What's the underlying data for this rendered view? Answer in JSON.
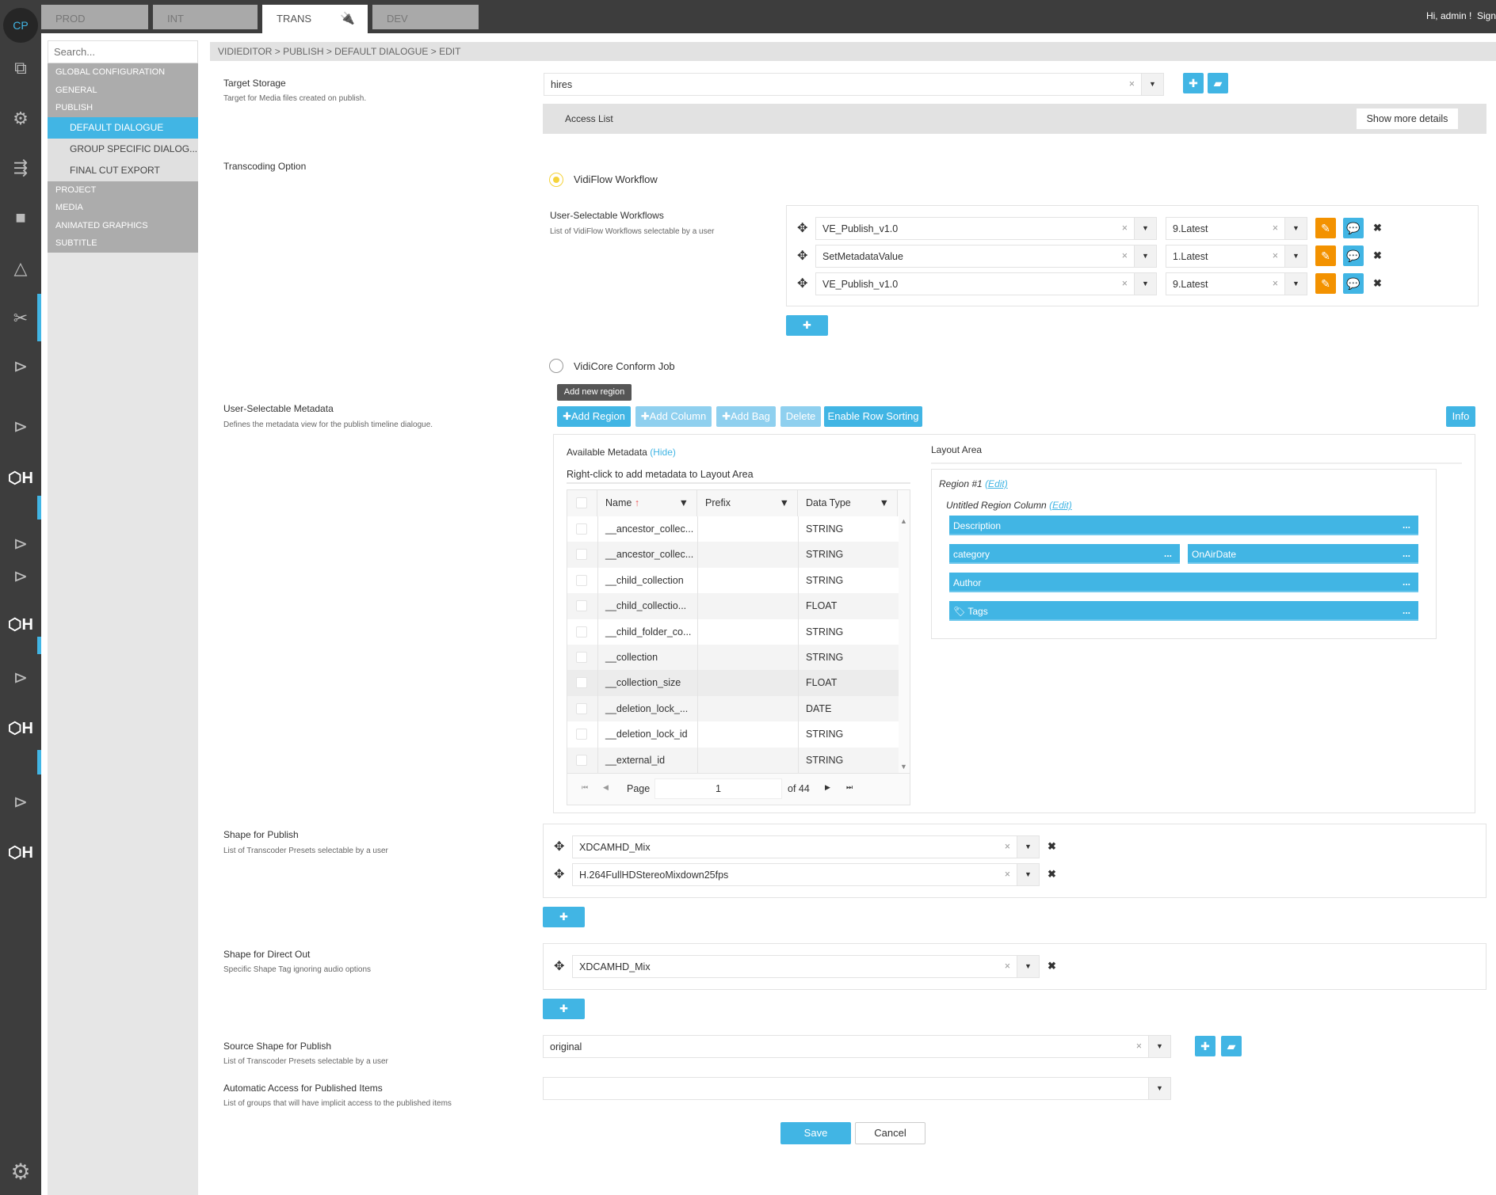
{
  "topbar": {
    "tabs": [
      {
        "label": "PROD"
      },
      {
        "label": "INT"
      },
      {
        "label": "TRANS",
        "icon": "plug-icon"
      },
      {
        "label": "DEV"
      }
    ],
    "greeting": "Hi, admin !",
    "signout": "Sign"
  },
  "rail": {
    "logo": "CP"
  },
  "nav": {
    "search_placeholder": "Search...",
    "items": [
      {
        "label": "GLOBAL CONFIGURATION"
      },
      {
        "label": "GENERAL"
      },
      {
        "label": "PUBLISH"
      },
      {
        "label": "DEFAULT DIALOGUE",
        "active": true
      },
      {
        "label": "GROUP SPECIFIC DIALOG..."
      },
      {
        "label": "FINAL CUT EXPORT"
      },
      {
        "label": "PROJECT"
      },
      {
        "label": "MEDIA"
      },
      {
        "label": "ANIMATED GRAPHICS"
      },
      {
        "label": "SUBTITLE"
      }
    ]
  },
  "breadcrumb": "VIDIEDITOR > PUBLISH > DEFAULT DIALOGUE > EDIT",
  "target_storage": {
    "label": "Target Storage",
    "desc": "Target for Media files created on publish.",
    "value": "hires",
    "access_list": "Access List",
    "show_more": "Show more details"
  },
  "transcoding": {
    "label": "Transcoding Option",
    "option1": "VidiFlow Workflow",
    "option2": "VidiCore Conform Job",
    "selected": "VidiFlow Workflow"
  },
  "workflows": {
    "label": "User-Selectable Workflows",
    "desc": "List of VidiFlow Workflows selectable by a user",
    "rows": [
      {
        "name": "VE_Publish_v1.0",
        "version": "9.Latest"
      },
      {
        "name": "SetMetadataValue",
        "version": "1.Latest"
      },
      {
        "name": "VE_Publish_v1.0",
        "version": "9.Latest"
      }
    ]
  },
  "metadata": {
    "label": "User-Selectable Metadata",
    "desc": "Defines the metadata view for the publish timeline dialogue.",
    "tooltip": "Add new region",
    "buttons": {
      "add_region": "Add Region",
      "add_column": "Add Column",
      "add_bag": "Add Bag",
      "delete": "Delete",
      "row_sorting": "Enable Row Sorting",
      "info": "Info"
    },
    "available_title": "Available Metadata",
    "hide": "(Hide)",
    "hint": "Right-click to add metadata to Layout Area",
    "columns": [
      "Name",
      "Prefix",
      "Data Type"
    ],
    "rows": [
      [
        "__ancestor_collec...",
        "",
        "STRING"
      ],
      [
        "__ancestor_collec...",
        "",
        "STRING"
      ],
      [
        "__child_collection",
        "",
        "STRING"
      ],
      [
        "__child_collectio...",
        "",
        "FLOAT"
      ],
      [
        "__child_folder_co...",
        "",
        "STRING"
      ],
      [
        "__collection",
        "",
        "STRING"
      ],
      [
        "__collection_size",
        "",
        "FLOAT"
      ],
      [
        "__deletion_lock_...",
        "",
        "DATE"
      ],
      [
        "__deletion_lock_id",
        "",
        "STRING"
      ],
      [
        "__external_id",
        "",
        "STRING"
      ]
    ],
    "pager": {
      "page_label": "Page",
      "page": "1",
      "of": "of 44"
    },
    "layout_title": "Layout Area",
    "region": "Region #1",
    "region_edit": "(Edit)",
    "column": "Untitled Region Column",
    "column_edit": "(Edit)",
    "fields": {
      "description": "Description",
      "category": "category",
      "onairdate": "OnAirDate",
      "author": "Author",
      "tags": "Tags",
      "more": "..."
    }
  },
  "shape_publish": {
    "label": "Shape for Publish",
    "desc": "List of Transcoder Presets selectable by a user",
    "rows": [
      "XDCAMHD_Mix",
      "H.264FullHDStereoMixdown25fps"
    ]
  },
  "shape_direct": {
    "label": "Shape for Direct Out",
    "desc": "Specific Shape Tag ignoring audio options",
    "rows": [
      "XDCAMHD_Mix"
    ]
  },
  "source_shape": {
    "label": "Source Shape for Publish",
    "desc": "List of Transcoder Presets selectable by a user",
    "value": "original"
  },
  "auto_access": {
    "label": "Automatic Access for Published Items",
    "desc": "List of groups that will have implicit access to the published items",
    "value": ""
  },
  "actions": {
    "save": "Save",
    "cancel": "Cancel"
  },
  "colors": {
    "accent": "#41b5e4",
    "orange": "#f39200",
    "dark": "#3d3d3d"
  }
}
